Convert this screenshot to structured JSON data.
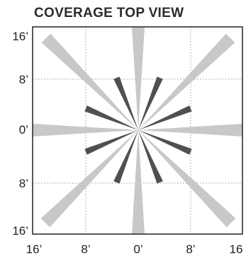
{
  "title": "COVERAGE TOP VIEW",
  "y_labels": [
    "16’",
    "8’",
    "0’",
    "8’",
    "16’"
  ],
  "x_labels": [
    "16’",
    "8’",
    "0’",
    "8’",
    "16"
  ],
  "colors": {
    "outer_beam": "#c8c8c8",
    "inner_beam": "#505050",
    "grid": "#9a9a9a",
    "frame": "#222222"
  },
  "outer_beams": {
    "count": 8,
    "angles_deg": [
      0,
      45,
      90,
      135,
      180,
      225,
      270,
      315
    ]
  },
  "inner_beams": {
    "count": 8,
    "angles_deg": [
      22.5,
      67.5,
      112.5,
      157.5,
      202.5,
      247.5,
      292.5,
      337.5
    ]
  }
}
